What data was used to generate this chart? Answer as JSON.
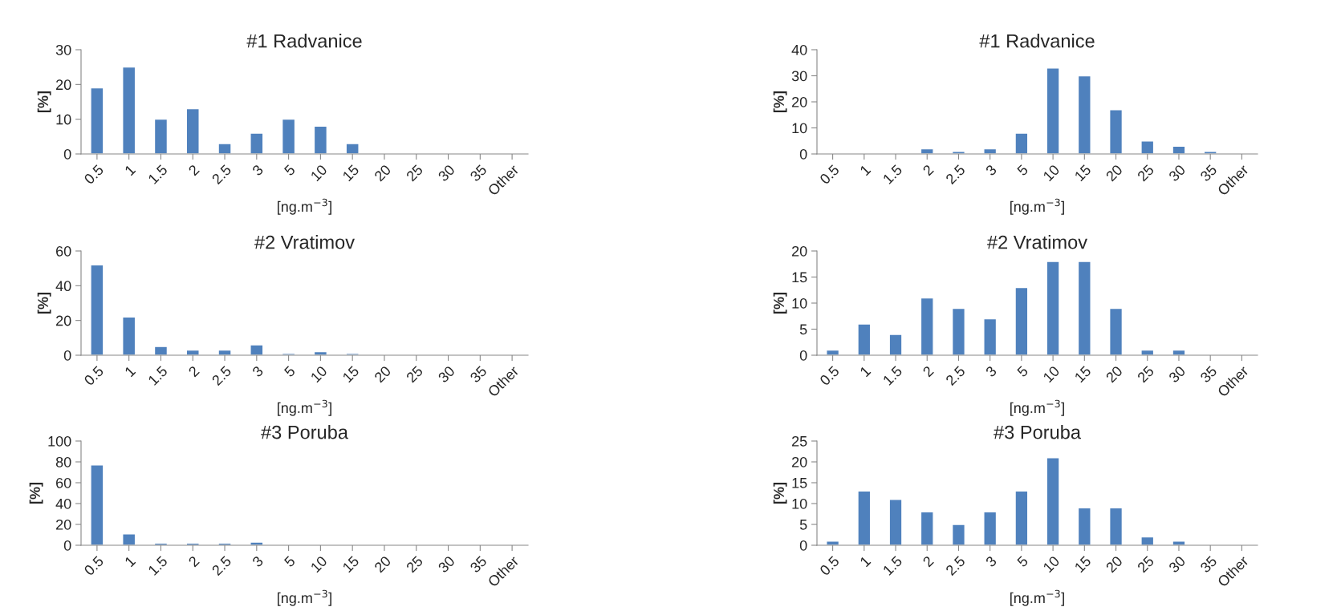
{
  "chart_data": [
    {
      "type": "bar",
      "title": "#1 Radvanice",
      "xlabel": "[ng.m$^{−3}$]",
      "ylabel": "[%]",
      "categories": [
        "0.5",
        "1",
        "1.5",
        "2",
        "2.5",
        "3",
        "5",
        "10",
        "15",
        "20",
        "25",
        "30",
        "35",
        "Other"
      ],
      "values": [
        19,
        25,
        10,
        13,
        3,
        6,
        10,
        8,
        3,
        0,
        0,
        0,
        0,
        0
      ],
      "color": "#4f81bd",
      "ylim": [
        0,
        30
      ],
      "yticks": [
        0,
        10,
        20,
        30
      ]
    },
    {
      "type": "bar",
      "title": "#1 Radvanice",
      "xlabel": "[ng.m$^{−3}$]",
      "ylabel": "[%]",
      "categories": [
        "0.5",
        "1",
        "1.5",
        "2",
        "2.5",
        "3",
        "5",
        "10",
        "15",
        "20",
        "25",
        "30",
        "35",
        "Other"
      ],
      "values": [
        0,
        0,
        0,
        2,
        1,
        2,
        8,
        33,
        30,
        17,
        5,
        3,
        1,
        0
      ],
      "color": "#4f81bd",
      "ylim": [
        0,
        40
      ],
      "yticks": [
        0,
        10,
        20,
        30,
        40
      ]
    },
    {
      "type": "bar",
      "title": "#2 Vratimov",
      "xlabel": "[ng.m$^{−3}$]",
      "ylabel": "[%]",
      "categories": [
        "0.5",
        "1",
        "1.5",
        "2",
        "2.5",
        "3",
        "5",
        "10",
        "15",
        "20",
        "25",
        "30",
        "35",
        "Other"
      ],
      "values": [
        52,
        22,
        5,
        3,
        3,
        6,
        1,
        2,
        1,
        0,
        0,
        0,
        0,
        0
      ],
      "color": "#4f81bd",
      "ylim": [
        0,
        60
      ],
      "yticks": [
        0,
        20,
        40,
        60
      ]
    },
    {
      "type": "bar",
      "title": "#2 Vratimov",
      "xlabel": "[ng.m$^{−3}$]",
      "ylabel": "[%]",
      "categories": [
        "0.5",
        "1",
        "1.5",
        "2",
        "2.5",
        "3",
        "5",
        "10",
        "15",
        "20",
        "25",
        "30",
        "35",
        "Other"
      ],
      "values": [
        1,
        6,
        4,
        11,
        9,
        7,
        13,
        18,
        18,
        9,
        1,
        1,
        0,
        0
      ],
      "color": "#4f81bd",
      "ylim": [
        0,
        20
      ],
      "yticks": [
        0,
        5,
        10,
        15,
        20
      ]
    },
    {
      "type": "bar",
      "title": "#3 Poruba",
      "xlabel": "[ng.m$^{−3}$]",
      "ylabel": "[%]",
      "categories": [
        "0.5",
        "1",
        "1.5",
        "2",
        "2.5",
        "3",
        "5",
        "10",
        "15",
        "20",
        "25",
        "30",
        "35",
        "Other"
      ],
      "values": [
        77,
        11,
        2,
        2,
        2,
        3,
        0,
        0,
        0,
        0,
        0,
        0,
        0,
        0
      ],
      "color": "#4f81bd",
      "ylim": [
        0,
        100
      ],
      "yticks": [
        0,
        20,
        40,
        60,
        80,
        100
      ]
    },
    {
      "type": "bar",
      "title": "#3 Poruba",
      "xlabel": "[ng.m$^{−3}$]",
      "ylabel": "[%]",
      "categories": [
        "0.5",
        "1",
        "1.5",
        "2",
        "2.5",
        "3",
        "5",
        "10",
        "15",
        "20",
        "25",
        "30",
        "35",
        "Other"
      ],
      "values": [
        1,
        13,
        11,
        8,
        5,
        8,
        13,
        21,
        9,
        9,
        2,
        1,
        0,
        0
      ],
      "color": "#4f81bd",
      "ylim": [
        0,
        25
      ],
      "yticks": [
        0,
        5,
        10,
        15,
        20,
        25
      ]
    }
  ]
}
